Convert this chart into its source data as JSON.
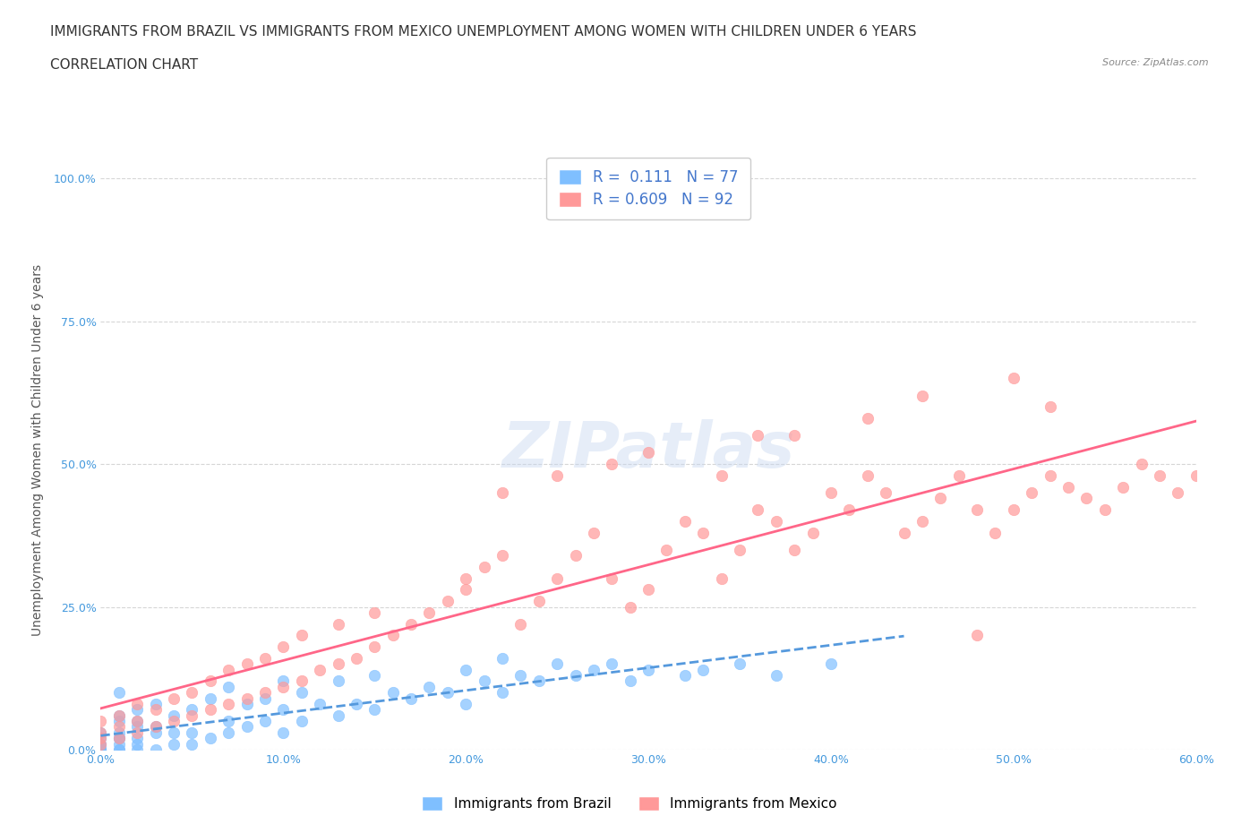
{
  "title_line1": "IMMIGRANTS FROM BRAZIL VS IMMIGRANTS FROM MEXICO UNEMPLOYMENT AMONG WOMEN WITH CHILDREN UNDER 6 YEARS",
  "title_line2": "CORRELATION CHART",
  "source": "Source: ZipAtlas.com",
  "xlabel": "",
  "ylabel": "Unemployment Among Women with Children Under 6 years",
  "xlim": [
    0.0,
    0.6
  ],
  "ylim": [
    0.0,
    1.05
  ],
  "yticks": [
    0.0,
    0.25,
    0.5,
    0.75,
    1.0
  ],
  "ytick_labels": [
    "0.0%",
    "25.0%",
    "50.0%",
    "75.0%",
    "100.0%"
  ],
  "xticks": [
    0.0,
    0.1,
    0.2,
    0.3,
    0.4,
    0.5,
    0.6
  ],
  "xtick_labels": [
    "0.0%",
    "10.0%",
    "20.0%",
    "30.0%",
    "40.0%",
    "50.0%",
    "60.0%"
  ],
  "brazil_color": "#7fbfff",
  "mexico_color": "#ff9999",
  "brazil_line_color": "#5599dd",
  "mexico_line_color": "#ff6688",
  "brazil_R": 0.111,
  "brazil_N": 77,
  "mexico_R": 0.609,
  "mexico_N": 92,
  "background_color": "#ffffff",
  "grid_color": "#cccccc",
  "watermark": "ZIPatlas",
  "legend_label_brazil": "Immigrants from Brazil",
  "legend_label_mexico": "Immigrants from Mexico",
  "brazil_scatter_x": [
    0.0,
    0.0,
    0.0,
    0.0,
    0.0,
    0.0,
    0.0,
    0.0,
    0.0,
    0.0,
    0.01,
    0.01,
    0.01,
    0.01,
    0.01,
    0.01,
    0.01,
    0.01,
    0.01,
    0.02,
    0.02,
    0.02,
    0.02,
    0.02,
    0.02,
    0.03,
    0.03,
    0.03,
    0.03,
    0.04,
    0.04,
    0.04,
    0.05,
    0.05,
    0.05,
    0.06,
    0.06,
    0.07,
    0.07,
    0.07,
    0.08,
    0.08,
    0.09,
    0.09,
    0.1,
    0.1,
    0.1,
    0.11,
    0.11,
    0.12,
    0.13,
    0.13,
    0.14,
    0.15,
    0.15,
    0.16,
    0.17,
    0.18,
    0.19,
    0.2,
    0.2,
    0.21,
    0.22,
    0.22,
    0.23,
    0.24,
    0.25,
    0.26,
    0.27,
    0.28,
    0.29,
    0.3,
    0.32,
    0.33,
    0.35,
    0.37,
    0.4
  ],
  "brazil_scatter_y": [
    0.0,
    0.0,
    0.0,
    0.0,
    0.0,
    0.0,
    0.01,
    0.01,
    0.02,
    0.03,
    0.0,
    0.0,
    0.01,
    0.02,
    0.02,
    0.03,
    0.05,
    0.06,
    0.1,
    0.0,
    0.01,
    0.02,
    0.04,
    0.05,
    0.07,
    0.0,
    0.03,
    0.04,
    0.08,
    0.01,
    0.03,
    0.06,
    0.01,
    0.03,
    0.07,
    0.02,
    0.09,
    0.03,
    0.05,
    0.11,
    0.04,
    0.08,
    0.05,
    0.09,
    0.03,
    0.07,
    0.12,
    0.05,
    0.1,
    0.08,
    0.06,
    0.12,
    0.08,
    0.07,
    0.13,
    0.1,
    0.09,
    0.11,
    0.1,
    0.08,
    0.14,
    0.12,
    0.1,
    0.16,
    0.13,
    0.12,
    0.15,
    0.13,
    0.14,
    0.15,
    0.12,
    0.14,
    0.13,
    0.14,
    0.15,
    0.13,
    0.15
  ],
  "mexico_scatter_x": [
    0.0,
    0.0,
    0.0,
    0.0,
    0.01,
    0.01,
    0.01,
    0.02,
    0.02,
    0.02,
    0.03,
    0.03,
    0.04,
    0.04,
    0.05,
    0.05,
    0.06,
    0.06,
    0.07,
    0.07,
    0.08,
    0.08,
    0.09,
    0.09,
    0.1,
    0.1,
    0.11,
    0.11,
    0.12,
    0.13,
    0.13,
    0.14,
    0.15,
    0.15,
    0.16,
    0.17,
    0.18,
    0.19,
    0.2,
    0.2,
    0.21,
    0.22,
    0.23,
    0.24,
    0.25,
    0.26,
    0.27,
    0.28,
    0.29,
    0.3,
    0.31,
    0.32,
    0.33,
    0.34,
    0.35,
    0.36,
    0.37,
    0.38,
    0.39,
    0.4,
    0.41,
    0.42,
    0.43,
    0.44,
    0.45,
    0.46,
    0.47,
    0.48,
    0.49,
    0.5,
    0.51,
    0.52,
    0.53,
    0.54,
    0.55,
    0.56,
    0.57,
    0.58,
    0.59,
    0.6,
    0.38,
    0.42,
    0.45,
    0.5,
    0.52,
    0.28,
    0.3,
    0.34,
    0.36,
    0.22,
    0.25,
    0.48
  ],
  "mexico_scatter_y": [
    0.01,
    0.02,
    0.03,
    0.05,
    0.02,
    0.04,
    0.06,
    0.03,
    0.05,
    0.08,
    0.04,
    0.07,
    0.05,
    0.09,
    0.06,
    0.1,
    0.07,
    0.12,
    0.08,
    0.14,
    0.09,
    0.15,
    0.1,
    0.16,
    0.11,
    0.18,
    0.12,
    0.2,
    0.14,
    0.15,
    0.22,
    0.16,
    0.18,
    0.24,
    0.2,
    0.22,
    0.24,
    0.26,
    0.28,
    0.3,
    0.32,
    0.34,
    0.22,
    0.26,
    0.3,
    0.34,
    0.38,
    0.3,
    0.25,
    0.28,
    0.35,
    0.4,
    0.38,
    0.3,
    0.35,
    0.42,
    0.4,
    0.35,
    0.38,
    0.45,
    0.42,
    0.48,
    0.45,
    0.38,
    0.4,
    0.44,
    0.48,
    0.42,
    0.38,
    0.42,
    0.45,
    0.48,
    0.46,
    0.44,
    0.42,
    0.46,
    0.5,
    0.48,
    0.45,
    0.48,
    0.55,
    0.58,
    0.62,
    0.65,
    0.6,
    0.5,
    0.52,
    0.48,
    0.55,
    0.45,
    0.48,
    0.2
  ],
  "title_fontsize": 11,
  "subtitle_fontsize": 11,
  "axis_label_fontsize": 10,
  "tick_fontsize": 9,
  "legend_fontsize": 12
}
